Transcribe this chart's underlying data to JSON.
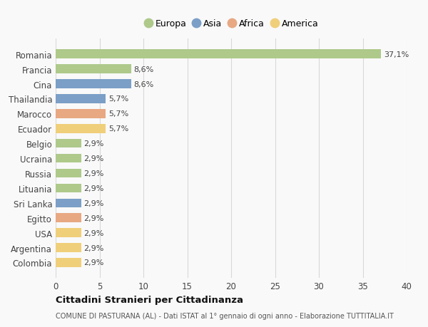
{
  "countries": [
    "Colombia",
    "Argentina",
    "USA",
    "Egitto",
    "Sri Lanka",
    "Lituania",
    "Russia",
    "Ucraina",
    "Belgio",
    "Ecuador",
    "Marocco",
    "Thailandia",
    "Cina",
    "Francia",
    "Romania"
  ],
  "values": [
    2.9,
    2.9,
    2.9,
    2.9,
    2.9,
    2.9,
    2.9,
    2.9,
    2.9,
    5.7,
    5.7,
    5.7,
    8.6,
    8.6,
    37.1
  ],
  "labels": [
    "2,9%",
    "2,9%",
    "2,9%",
    "2,9%",
    "2,9%",
    "2,9%",
    "2,9%",
    "2,9%",
    "2,9%",
    "5,7%",
    "5,7%",
    "5,7%",
    "8,6%",
    "8,6%",
    "37,1%"
  ],
  "continents": [
    "America",
    "America",
    "America",
    "Africa",
    "Asia",
    "Europa",
    "Europa",
    "Europa",
    "Europa",
    "America",
    "Africa",
    "Asia",
    "Asia",
    "Europa",
    "Europa"
  ],
  "continent_colors": {
    "Europa": "#aec98a",
    "Asia": "#7b9fc7",
    "Africa": "#e8a882",
    "America": "#f0cf7a"
  },
  "legend_order": [
    "Europa",
    "Asia",
    "Africa",
    "America"
  ],
  "xlim": [
    0,
    40
  ],
  "xticks": [
    0,
    5,
    10,
    15,
    20,
    25,
    30,
    35,
    40
  ],
  "title": "Cittadini Stranieri per Cittadinanza",
  "subtitle": "COMUNE DI PASTURANA (AL) - Dati ISTAT al 1° gennaio di ogni anno - Elaborazione TUTTITALIA.IT",
  "bg_color": "#f9f9f9",
  "grid_color": "#d8d8d8",
  "bar_height": 0.6
}
